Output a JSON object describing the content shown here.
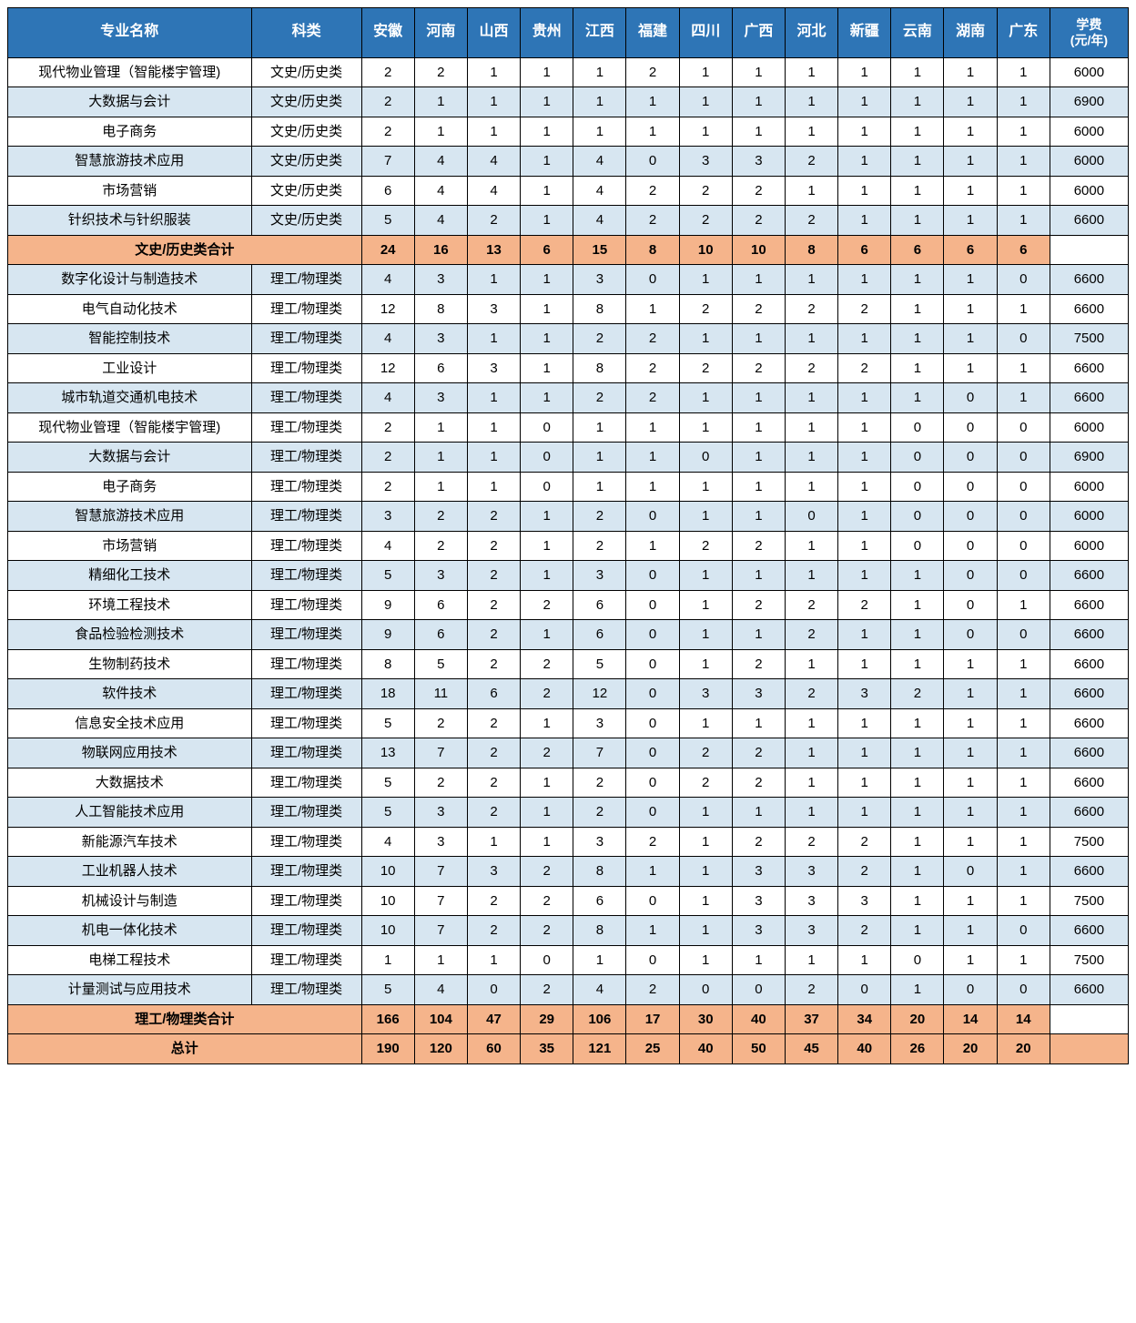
{
  "colors": {
    "header_bg": "#2e75b6",
    "header_fg": "#ffffff",
    "row_white": "#ffffff",
    "row_blue": "#d7e6f1",
    "subtotal_bg": "#f5b48b",
    "border": "#000000"
  },
  "table": {
    "headers": {
      "major": "专业名称",
      "category": "科类",
      "provinces": [
        "安徽",
        "河南",
        "山西",
        "贵州",
        "江西",
        "福建",
        "四川",
        "广西",
        "河北",
        "新疆",
        "云南",
        "湖南",
        "广东"
      ],
      "fee": "学费\n(元/年)"
    },
    "rows": [
      {
        "type": "data",
        "stripe": "white",
        "major": "现代物业管理（智能楼宇管理)",
        "category": "文史/历史类",
        "vals": [
          2,
          2,
          1,
          1,
          1,
          2,
          1,
          1,
          1,
          1,
          1,
          1,
          1
        ],
        "fee": 6000
      },
      {
        "type": "data",
        "stripe": "blue",
        "major": "大数据与会计",
        "category": "文史/历史类",
        "vals": [
          2,
          1,
          1,
          1,
          1,
          1,
          1,
          1,
          1,
          1,
          1,
          1,
          1
        ],
        "fee": 6900
      },
      {
        "type": "data",
        "stripe": "white",
        "major": "电子商务",
        "category": "文史/历史类",
        "vals": [
          2,
          1,
          1,
          1,
          1,
          1,
          1,
          1,
          1,
          1,
          1,
          1,
          1
        ],
        "fee": 6000
      },
      {
        "type": "data",
        "stripe": "blue",
        "major": "智慧旅游技术应用",
        "category": "文史/历史类",
        "vals": [
          7,
          4,
          4,
          1,
          4,
          0,
          3,
          3,
          2,
          1,
          1,
          1,
          1
        ],
        "fee": 6000
      },
      {
        "type": "data",
        "stripe": "white",
        "major": "市场营销",
        "category": "文史/历史类",
        "vals": [
          6,
          4,
          4,
          1,
          4,
          2,
          2,
          2,
          1,
          1,
          1,
          1,
          1
        ],
        "fee": 6000
      },
      {
        "type": "data",
        "stripe": "blue",
        "major": "针织技术与针织服装",
        "category": "文史/历史类",
        "vals": [
          5,
          4,
          2,
          1,
          4,
          2,
          2,
          2,
          2,
          1,
          1,
          1,
          1
        ],
        "fee": 6600
      },
      {
        "type": "subtotal",
        "label": "文史/历史类合计",
        "vals": [
          24,
          16,
          13,
          6,
          15,
          8,
          10,
          10,
          8,
          6,
          6,
          6,
          6
        ],
        "fee": ""
      },
      {
        "type": "data",
        "stripe": "blue",
        "major": "数字化设计与制造技术",
        "category": "理工/物理类",
        "vals": [
          4,
          3,
          1,
          1,
          3,
          0,
          1,
          1,
          1,
          1,
          1,
          1,
          0
        ],
        "fee": 6600
      },
      {
        "type": "data",
        "stripe": "white",
        "major": "电气自动化技术",
        "category": "理工/物理类",
        "vals": [
          12,
          8,
          3,
          1,
          8,
          1,
          2,
          2,
          2,
          2,
          1,
          1,
          1
        ],
        "fee": 6600
      },
      {
        "type": "data",
        "stripe": "blue",
        "major": "智能控制技术",
        "category": "理工/物理类",
        "vals": [
          4,
          3,
          1,
          1,
          2,
          2,
          1,
          1,
          1,
          1,
          1,
          1,
          0
        ],
        "fee": 7500
      },
      {
        "type": "data",
        "stripe": "white",
        "major": "工业设计",
        "category": "理工/物理类",
        "vals": [
          12,
          6,
          3,
          1,
          8,
          2,
          2,
          2,
          2,
          2,
          1,
          1,
          1
        ],
        "fee": 6600
      },
      {
        "type": "data",
        "stripe": "blue",
        "major": "城市轨道交通机电技术",
        "category": "理工/物理类",
        "vals": [
          4,
          3,
          1,
          1,
          2,
          2,
          1,
          1,
          1,
          1,
          1,
          0,
          1
        ],
        "fee": 6600
      },
      {
        "type": "data",
        "stripe": "white",
        "major": "现代物业管理（智能楼宇管理)",
        "category": "理工/物理类",
        "vals": [
          2,
          1,
          1,
          0,
          1,
          1,
          1,
          1,
          1,
          1,
          0,
          0,
          0
        ],
        "fee": 6000
      },
      {
        "type": "data",
        "stripe": "blue",
        "major": "大数据与会计",
        "category": "理工/物理类",
        "vals": [
          2,
          1,
          1,
          0,
          1,
          1,
          0,
          1,
          1,
          1,
          0,
          0,
          0
        ],
        "fee": 6900
      },
      {
        "type": "data",
        "stripe": "white",
        "major": "电子商务",
        "category": "理工/物理类",
        "vals": [
          2,
          1,
          1,
          0,
          1,
          1,
          1,
          1,
          1,
          1,
          0,
          0,
          0
        ],
        "fee": 6000
      },
      {
        "type": "data",
        "stripe": "blue",
        "major": "智慧旅游技术应用",
        "category": "理工/物理类",
        "vals": [
          3,
          2,
          2,
          1,
          2,
          0,
          1,
          1,
          0,
          1,
          0,
          0,
          0
        ],
        "fee": 6000
      },
      {
        "type": "data",
        "stripe": "white",
        "major": "市场营销",
        "category": "理工/物理类",
        "vals": [
          4,
          2,
          2,
          1,
          2,
          1,
          2,
          2,
          1,
          1,
          0,
          0,
          0
        ],
        "fee": 6000
      },
      {
        "type": "data",
        "stripe": "blue",
        "major": "精细化工技术",
        "category": "理工/物理类",
        "vals": [
          5,
          3,
          2,
          1,
          3,
          0,
          1,
          1,
          1,
          1,
          1,
          0,
          0
        ],
        "fee": 6600
      },
      {
        "type": "data",
        "stripe": "white",
        "major": "环境工程技术",
        "category": "理工/物理类",
        "vals": [
          9,
          6,
          2,
          2,
          6,
          0,
          1,
          2,
          2,
          2,
          1,
          0,
          1
        ],
        "fee": 6600
      },
      {
        "type": "data",
        "stripe": "blue",
        "major": "食品检验检测技术",
        "category": "理工/物理类",
        "vals": [
          9,
          6,
          2,
          1,
          6,
          0,
          1,
          1,
          2,
          1,
          1,
          0,
          0
        ],
        "fee": 6600
      },
      {
        "type": "data",
        "stripe": "white",
        "major": "生物制药技术",
        "category": "理工/物理类",
        "vals": [
          8,
          5,
          2,
          2,
          5,
          0,
          1,
          2,
          1,
          1,
          1,
          1,
          1
        ],
        "fee": 6600
      },
      {
        "type": "data",
        "stripe": "blue",
        "major": "软件技术",
        "category": "理工/物理类",
        "vals": [
          18,
          11,
          6,
          2,
          12,
          0,
          3,
          3,
          2,
          3,
          2,
          1,
          1
        ],
        "fee": 6600
      },
      {
        "type": "data",
        "stripe": "white",
        "major": "信息安全技术应用",
        "category": "理工/物理类",
        "vals": [
          5,
          2,
          2,
          1,
          3,
          0,
          1,
          1,
          1,
          1,
          1,
          1,
          1
        ],
        "fee": 6600
      },
      {
        "type": "data",
        "stripe": "blue",
        "major": "物联网应用技术",
        "category": "理工/物理类",
        "vals": [
          13,
          7,
          2,
          2,
          7,
          0,
          2,
          2,
          1,
          1,
          1,
          1,
          1
        ],
        "fee": 6600
      },
      {
        "type": "data",
        "stripe": "white",
        "major": "大数据技术",
        "category": "理工/物理类",
        "vals": [
          5,
          2,
          2,
          1,
          2,
          0,
          2,
          2,
          1,
          1,
          1,
          1,
          1
        ],
        "fee": 6600
      },
      {
        "type": "data",
        "stripe": "blue",
        "major": "人工智能技术应用",
        "category": "理工/物理类",
        "vals": [
          5,
          3,
          2,
          1,
          2,
          0,
          1,
          1,
          1,
          1,
          1,
          1,
          1
        ],
        "fee": 6600
      },
      {
        "type": "data",
        "stripe": "white",
        "major": "新能源汽车技术",
        "category": "理工/物理类",
        "vals": [
          4,
          3,
          1,
          1,
          3,
          2,
          1,
          2,
          2,
          2,
          1,
          1,
          1
        ],
        "fee": 7500
      },
      {
        "type": "data",
        "stripe": "blue",
        "major": "工业机器人技术",
        "category": "理工/物理类",
        "vals": [
          10,
          7,
          3,
          2,
          8,
          1,
          1,
          3,
          3,
          2,
          1,
          0,
          1
        ],
        "fee": 6600
      },
      {
        "type": "data",
        "stripe": "white",
        "major": "机械设计与制造",
        "category": "理工/物理类",
        "vals": [
          10,
          7,
          2,
          2,
          6,
          0,
          1,
          3,
          3,
          3,
          1,
          1,
          1
        ],
        "fee": 7500
      },
      {
        "type": "data",
        "stripe": "blue",
        "major": "机电一体化技术",
        "category": "理工/物理类",
        "vals": [
          10,
          7,
          2,
          2,
          8,
          1,
          1,
          3,
          3,
          2,
          1,
          1,
          0
        ],
        "fee": 6600
      },
      {
        "type": "data",
        "stripe": "white",
        "major": "电梯工程技术",
        "category": "理工/物理类",
        "vals": [
          1,
          1,
          1,
          0,
          1,
          0,
          1,
          1,
          1,
          1,
          0,
          1,
          1
        ],
        "fee": 7500
      },
      {
        "type": "data",
        "stripe": "blue",
        "major": "计量测试与应用技术",
        "category": "理工/物理类",
        "vals": [
          5,
          4,
          0,
          2,
          4,
          2,
          0,
          0,
          2,
          0,
          1,
          0,
          0
        ],
        "fee": 6600
      },
      {
        "type": "subtotal",
        "label": "理工/物理类合计",
        "vals": [
          166,
          104,
          47,
          29,
          106,
          17,
          30,
          40,
          37,
          34,
          20,
          14,
          14
        ],
        "fee": ""
      },
      {
        "type": "total",
        "label": "总计",
        "vals": [
          190,
          120,
          60,
          35,
          121,
          25,
          40,
          50,
          45,
          40,
          26,
          20,
          20
        ],
        "fee": ""
      }
    ]
  }
}
